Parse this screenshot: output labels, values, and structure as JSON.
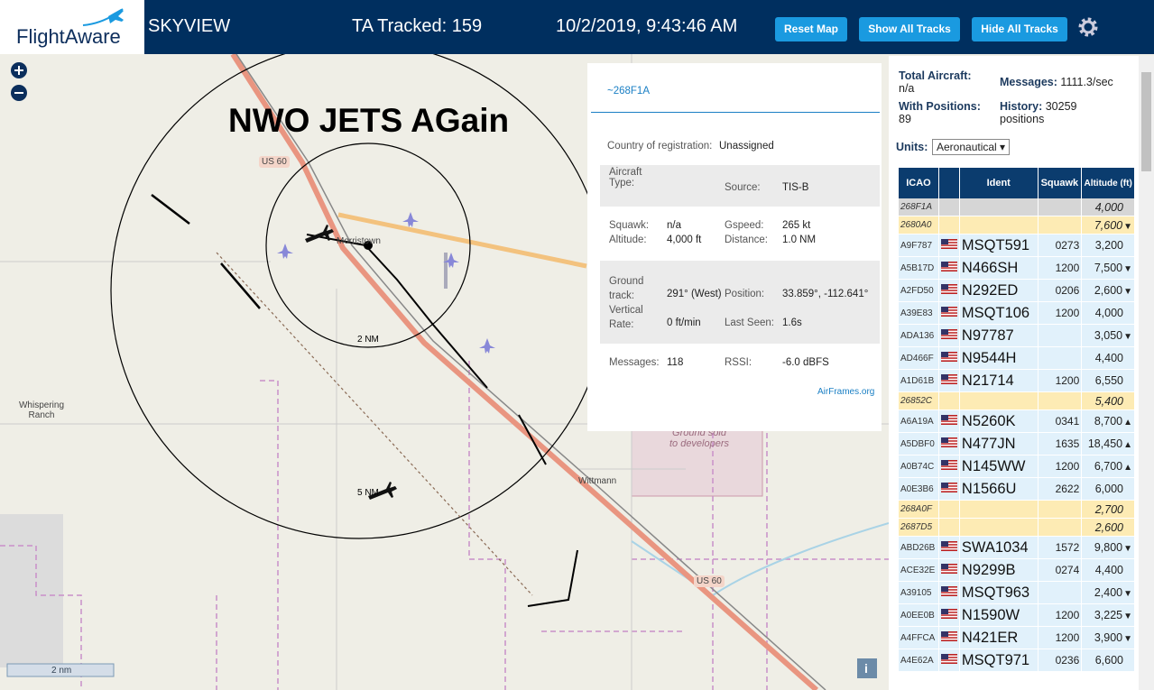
{
  "header": {
    "logo": "FlightAware",
    "app_name": "SKYVIEW",
    "tracked": "TA Tracked: 159",
    "timestamp": "10/2/2019, 9:43:46 AM",
    "buttons": [
      "Reset Map",
      "Show All Tracks",
      "Hide All Tracks"
    ]
  },
  "map": {
    "annotation": "NWO JETS AGain",
    "labels": {
      "highway_north": "US 60",
      "highway_south": "US 60",
      "town": "Morristown",
      "ranch": "Whispering Ranch",
      "parcel": "Ground sold to developers",
      "town_south": "Wittmann",
      "ring_inner": "2 NM",
      "ring_outer": "5 NM",
      "scale": "2 nm",
      "info": "i"
    }
  },
  "popup": {
    "id": "~268F1A",
    "link": "AirFrames.org",
    "fields": [
      {
        "label": "Country of registration:",
        "value": "Unassigned"
      },
      {
        "label": "Aircraft Type:"
      },
      {
        "label": "Source:",
        "value": "TIS-B"
      },
      {
        "label": "Squawk:",
        "value": "n/a"
      },
      {
        "label": "Gspeed:",
        "value": "265 kt"
      },
      {
        "label": "Altitude:",
        "value": "4,000 ft"
      },
      {
        "label": "Distance:",
        "value": "1.0 NM"
      },
      {
        "label": "Ground track:",
        "value": "291° (West)"
      },
      {
        "label": "Position:",
        "value": "33.859°, -112.641°"
      },
      {
        "label": "Vertical Rate:",
        "value": "0 ft/min"
      },
      {
        "label": "Last Seen:",
        "value": "1.6s"
      },
      {
        "label": "Messages:",
        "value": "118"
      },
      {
        "label": "RSSI:",
        "value": "-6.0 dBFS"
      }
    ]
  },
  "stats": {
    "total_label": "Total Aircraft:",
    "total": "n/a",
    "messages_label": "Messages:",
    "messages": "1111.3/sec",
    "positions_label": "With Positions:",
    "positions": "89",
    "history_label": "History:",
    "history": "30259 positions",
    "units_label": "Units:",
    "units": "Aeronautical"
  },
  "table": {
    "columns": [
      "ICAO",
      "Ident",
      "Squawk",
      "Altitude (ft)"
    ],
    "rows": [
      {
        "icao": "268F1A",
        "altitude": "4,000",
        "selected": true
      },
      {
        "icao": "2680A0",
        "altitude": "7,600",
        "trend": "▼",
        "highlight": true
      },
      {
        "icao": "A9F787",
        "flag": true,
        "ident": "MSQT591",
        "squawk": "0273",
        "altitude": "3,200"
      },
      {
        "icao": "A5B17D",
        "flag": true,
        "ident": "N466SH",
        "squawk": "1200",
        "altitude": "7,500",
        "trend": "▼"
      },
      {
        "icao": "A2FD50",
        "flag": true,
        "ident": "N292ED",
        "squawk": "0206",
        "altitude": "2,600",
        "trend": "▼"
      },
      {
        "icao": "A39E83",
        "flag": true,
        "ident": "MSQT106",
        "squawk": "1200",
        "altitude": "4,000"
      },
      {
        "icao": "ADA136",
        "flag": true,
        "ident": "N97787",
        "altitude": "3,050",
        "trend": "▼"
      },
      {
        "icao": "AD466F",
        "flag": true,
        "ident": "N9544H",
        "altitude": "4,400"
      },
      {
        "icao": "A1D61B",
        "flag": true,
        "ident": "N21714",
        "squawk": "1200",
        "altitude": "6,550"
      },
      {
        "icao": "26852C",
        "altitude": "5,400",
        "highlight": true
      },
      {
        "icao": "A6A19A",
        "flag": true,
        "ident": "N5260K",
        "squawk": "0341",
        "altitude": "8,700",
        "trend": "▲"
      },
      {
        "icao": "A5DBF0",
        "flag": true,
        "ident": "N477JN",
        "squawk": "1635",
        "altitude": "18,450",
        "trend": "▲"
      },
      {
        "icao": "A0B74C",
        "flag": true,
        "ident": "N145WW",
        "squawk": "1200",
        "altitude": "6,700",
        "trend": "▲"
      },
      {
        "icao": "A0E3B6",
        "flag": true,
        "ident": "N1566U",
        "squawk": "2622",
        "altitude": "6,000"
      },
      {
        "icao": "268A0F",
        "altitude": "2,700",
        "highlight": true
      },
      {
        "icao": "2687D5",
        "altitude": "2,600",
        "highlight": true
      },
      {
        "icao": "ABD26B",
        "flag": true,
        "ident": "SWA1034",
        "squawk": "1572",
        "altitude": "9,800",
        "trend": "▼"
      },
      {
        "icao": "ACE32E",
        "flag": true,
        "ident": "N9299B",
        "squawk": "0274",
        "altitude": "4,400"
      },
      {
        "icao": "A39105",
        "flag": true,
        "ident": "MSQT963",
        "altitude": "2,400",
        "trend": "▼"
      },
      {
        "icao": "A0EE0B",
        "flag": true,
        "ident": "N1590W",
        "squawk": "1200",
        "altitude": "3,225",
        "trend": "▼"
      },
      {
        "icao": "A4FFCA",
        "flag": true,
        "ident": "N421ER",
        "squawk": "1200",
        "altitude": "3,900",
        "trend": "▼"
      },
      {
        "icao": "A4E62A",
        "flag": true,
        "ident": "MSQT971",
        "squawk": "0236",
        "altitude": "6,600"
      }
    ]
  }
}
